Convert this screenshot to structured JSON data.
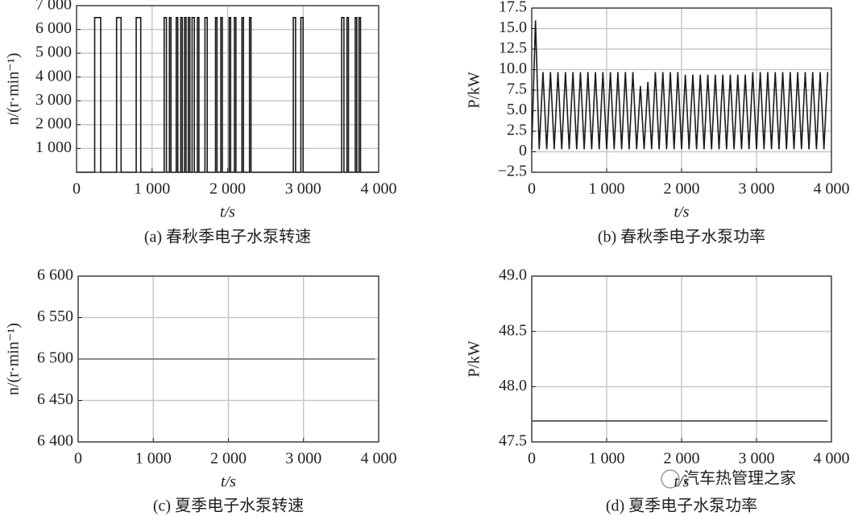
{
  "chart_data": [
    {
      "type": "line",
      "title": "(a) 春秋季电子水泵转速",
      "xlabel": "t/s",
      "ylabel": "n/(r·min⁻¹)",
      "color": "#1a1a1a",
      "grid": true,
      "xlim": [
        0,
        4000
      ],
      "ylim": [
        0,
        7000
      ],
      "xticks": [
        0,
        {
          "value": 1000,
          "label": "1 000"
        },
        {
          "value": 2000,
          "label": "2 000"
        },
        {
          "value": 3000,
          "label": "3 000"
        },
        {
          "value": 4000,
          "label": "4 000"
        }
      ],
      "yticks": [
        {
          "value": 1000,
          "label": "1 000"
        },
        {
          "value": 2000,
          "label": "2 000"
        },
        {
          "value": 3000,
          "label": "3 000"
        },
        {
          "value": 4000,
          "label": "4 000"
        },
        {
          "value": 5000,
          "label": "5 000"
        },
        {
          "value": 6000,
          "label": "6 000"
        },
        {
          "value": 7000,
          "label": "7 000"
        }
      ],
      "x": [
        0,
        240,
        240,
        320,
        320,
        530,
        530,
        590,
        590,
        790,
        790,
        850,
        850,
        1160,
        1160,
        1190,
        1190,
        1230,
        1230,
        1250,
        1250,
        1320,
        1320,
        1340,
        1340,
        1380,
        1380,
        1400,
        1400,
        1430,
        1430,
        1450,
        1450,
        1480,
        1480,
        1500,
        1500,
        1530,
        1530,
        1560,
        1560,
        1600,
        1600,
        1620,
        1620,
        1700,
        1700,
        1730,
        1730,
        1840,
        1840,
        1860,
        1860,
        1910,
        1910,
        1930,
        1930,
        2020,
        2020,
        2040,
        2040,
        2090,
        2090,
        2110,
        2110,
        2190,
        2190,
        2210,
        2210,
        2290,
        2290,
        2310,
        2310,
        2870,
        2870,
        2900,
        2900,
        2970,
        2970,
        3000,
        3000,
        3510,
        3510,
        3540,
        3540,
        3580,
        3580,
        3600,
        3600,
        3690,
        3690,
        3710,
        3710,
        3740,
        3740,
        3760,
        3760,
        4000
      ],
      "values": [
        0,
        0,
        6500,
        6500,
        0,
        0,
        6500,
        6500,
        0,
        0,
        6500,
        6500,
        0,
        0,
        6500,
        6500,
        0,
        0,
        6500,
        6500,
        0,
        0,
        6500,
        6500,
        0,
        0,
        6500,
        6500,
        0,
        0,
        6500,
        6500,
        0,
        0,
        6500,
        6500,
        0,
        0,
        6500,
        6500,
        0,
        0,
        6500,
        6500,
        0,
        0,
        6500,
        6500,
        0,
        0,
        6500,
        6500,
        0,
        0,
        6500,
        6500,
        0,
        0,
        6500,
        6500,
        0,
        0,
        6500,
        6500,
        0,
        0,
        6500,
        6500,
        0,
        0,
        6500,
        6500,
        0,
        0,
        6500,
        6500,
        0,
        0,
        6500,
        6500,
        0,
        0,
        6500,
        6500,
        0,
        0,
        6500,
        6500,
        0,
        0,
        6500,
        6500,
        0,
        0,
        6500,
        6500,
        0,
        0
      ]
    },
    {
      "type": "line",
      "title": "(b) 春秋季电子水泵功率",
      "xlabel": "t/s",
      "ylabel": "P/kW",
      "color": "#1a1a1a",
      "grid": true,
      "xlim": [
        0,
        4000
      ],
      "ylim": [
        -2.5,
        17.5
      ],
      "xticks": [
        0,
        {
          "value": 1000,
          "label": "1 000"
        },
        {
          "value": 2000,
          "label": "2 000"
        },
        {
          "value": 3000,
          "label": "3 000"
        },
        {
          "value": 4000,
          "label": "4 000"
        }
      ],
      "yticks": [
        {
          "value": -2.5,
          "label": "−2.5"
        },
        0,
        2.5,
        {
          "value": 5,
          "label": "5.0"
        },
        7.5,
        {
          "value": 10,
          "label": "10.0"
        },
        12.5,
        {
          "value": 15,
          "label": "15.0"
        },
        17.5
      ],
      "x": [
        0,
        50,
        100,
        150,
        200,
        250,
        300,
        350,
        400,
        450,
        500,
        550,
        600,
        650,
        700,
        750,
        800,
        850,
        900,
        950,
        1000,
        1050,
        1100,
        1150,
        1200,
        1250,
        1300,
        1350,
        1400,
        1450,
        1500,
        1550,
        1600,
        1650,
        1700,
        1750,
        1800,
        1850,
        1900,
        1950,
        2000,
        2050,
        2100,
        2150,
        2200,
        2250,
        2300,
        2350,
        2400,
        2450,
        2500,
        2550,
        2600,
        2650,
        2700,
        2750,
        2800,
        2850,
        2900,
        2950,
        3000,
        3050,
        3100,
        3150,
        3200,
        3250,
        3300,
        3350,
        3400,
        3450,
        3500,
        3550,
        3600,
        3650,
        3700,
        3750,
        3800,
        3850,
        3900,
        3950
      ],
      "values": [
        0.3,
        16.0,
        0.3,
        9.7,
        0.3,
        9.7,
        0.3,
        9.7,
        0.3,
        9.7,
        0.3,
        9.7,
        0.3,
        9.7,
        0.3,
        9.7,
        0.3,
        9.7,
        0.3,
        9.7,
        0.3,
        9.7,
        0.3,
        9.7,
        0.3,
        9.7,
        0.3,
        9.7,
        0.3,
        8.0,
        0.3,
        8.5,
        0.3,
        9.7,
        0.3,
        9.7,
        0.3,
        9.7,
        0.3,
        9.7,
        0.3,
        9.4,
        0.3,
        9.4,
        0.3,
        9.4,
        0.3,
        9.4,
        0.3,
        9.4,
        0.3,
        9.4,
        0.3,
        9.4,
        0.3,
        9.4,
        0.3,
        9.4,
        0.3,
        9.7,
        0.3,
        9.7,
        0.3,
        9.7,
        0.3,
        9.7,
        0.3,
        9.7,
        0.3,
        9.7,
        0.3,
        9.7,
        0.3,
        9.7,
        0.3,
        9.7,
        0.3,
        9.7,
        0.3,
        9.7
      ]
    },
    {
      "type": "line",
      "title": "(c) 夏季电子水泵转速",
      "xlabel": "t/s",
      "ylabel": "n/(r·min⁻¹)",
      "color": "#707070",
      "grid": true,
      "xlim": [
        0,
        4000
      ],
      "ylim": [
        6400,
        6600
      ],
      "xticks": [
        0,
        {
          "value": 1000,
          "label": "1 000"
        },
        {
          "value": 2000,
          "label": "2 000"
        },
        {
          "value": 3000,
          "label": "3 000"
        },
        {
          "value": 4000,
          "label": "4 000"
        }
      ],
      "yticks": [
        {
          "value": 6400,
          "label": "6 400"
        },
        {
          "value": 6450,
          "label": "6 450"
        },
        {
          "value": 6500,
          "label": "6 500"
        },
        {
          "value": 6550,
          "label": "6 550"
        },
        {
          "value": 6600,
          "label": "6 600"
        }
      ],
      "x": [
        0,
        3950
      ],
      "values": [
        6500,
        6500
      ]
    },
    {
      "type": "line",
      "title": "(d) 夏季电子水泵功率",
      "xlabel": "t/s",
      "ylabel": "P/kW",
      "color": "#404040",
      "grid": true,
      "xlim": [
        0,
        4000
      ],
      "ylim": [
        47.5,
        49.0
      ],
      "xticks": [
        0,
        {
          "value": 1000,
          "label": "1 000"
        },
        {
          "value": 2000,
          "label": "2 000"
        },
        {
          "value": 3000,
          "label": "3 000"
        },
        {
          "value": 4000,
          "label": "4 000"
        }
      ],
      "yticks": [
        47.5,
        {
          "value": 48,
          "label": "48.0"
        },
        48.5,
        {
          "value": 49,
          "label": "49.0"
        }
      ],
      "x": [
        0,
        3950
      ],
      "values": [
        47.69,
        47.69
      ]
    }
  ],
  "watermark": "汽车热管理之家"
}
